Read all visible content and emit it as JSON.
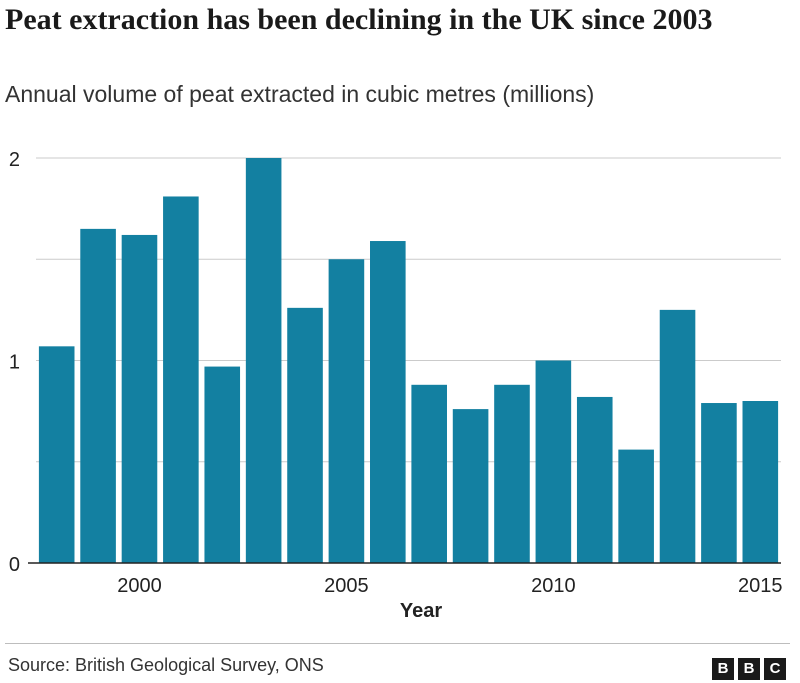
{
  "title": "Peat extraction has been declining in the UK since 2003",
  "subtitle": "Annual volume of peat extracted in cubic metres (millions)",
  "source": "Source: British Geological Survey, ONS",
  "logo": [
    "B",
    "B",
    "C"
  ],
  "colors": {
    "bar": "#1380a1",
    "grid": "#cbcbcb",
    "baseline": "#222222",
    "text": "#222222"
  },
  "chart_data": {
    "type": "bar",
    "x": [
      1998,
      1999,
      2000,
      2001,
      2002,
      2003,
      2004,
      2005,
      2006,
      2007,
      2008,
      2009,
      2010,
      2011,
      2012,
      2013,
      2014,
      2015
    ],
    "values": [
      1.07,
      1.65,
      1.62,
      1.81,
      0.97,
      2.0,
      1.26,
      1.5,
      1.59,
      0.88,
      0.76,
      0.88,
      1.0,
      0.82,
      0.56,
      1.25,
      0.79,
      0.8
    ],
    "xlabel": "Year",
    "ylabel": "",
    "xticks": [
      2000,
      2005,
      2010,
      2015
    ],
    "yticks": [
      0,
      1,
      2
    ],
    "ylim": [
      0,
      2
    ],
    "grid": true
  }
}
